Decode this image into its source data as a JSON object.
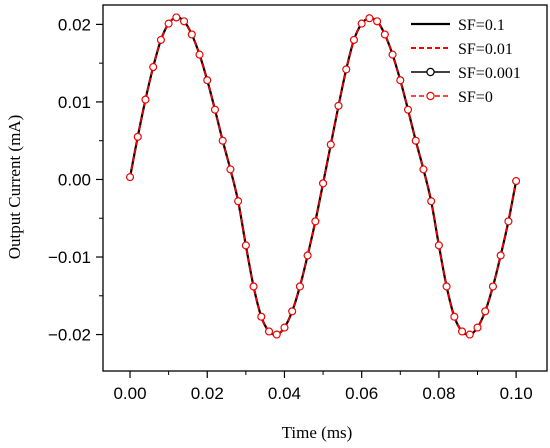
{
  "chart_data": {
    "type": "line",
    "title": "",
    "xlabel": "Time (ms)",
    "ylabel": "Output Current (mA)",
    "xlim": [
      -0.007,
      0.108
    ],
    "ylim": [
      -0.0247,
      0.0225
    ],
    "xticks": [
      0.0,
      0.02,
      0.04,
      0.06,
      0.08,
      0.1
    ],
    "xtick_labels": [
      "0.00",
      "0.02",
      "0.04",
      "0.06",
      "0.08",
      "0.10"
    ],
    "yticks": [
      -0.02,
      -0.01,
      0.0,
      0.01,
      0.02
    ],
    "ytick_labels": [
      "−0.02",
      "−0.01",
      "0.00",
      "0.01",
      "0.02"
    ],
    "grid": false,
    "legend_position": "top-right",
    "x": [
      0,
      0.002,
      0.004,
      0.006,
      0.008,
      0.01,
      0.012,
      0.014,
      0.016,
      0.018,
      0.02,
      0.022,
      0.024,
      0.026,
      0.028,
      0.03,
      0.032,
      0.034,
      0.036,
      0.038,
      0.04,
      0.042,
      0.044,
      0.046,
      0.048,
      0.05,
      0.052,
      0.054,
      0.056,
      0.058,
      0.06,
      0.062,
      0.064,
      0.066,
      0.068,
      0.07,
      0.072,
      0.074,
      0.076,
      0.078,
      0.08,
      0.082,
      0.084,
      0.086,
      0.088,
      0.09,
      0.092,
      0.094,
      0.096,
      0.098,
      0.1
    ],
    "series": [
      {
        "name": "SF=0.1",
        "color": "#000000",
        "line_style": "solid",
        "marker": "none",
        "values": [
          0.0003,
          0.0055,
          0.0103,
          0.0145,
          0.018,
          0.0201,
          0.0209,
          0.0204,
          0.0187,
          0.0161,
          0.0128,
          0.009,
          0.005,
          0.0013,
          -0.0028,
          -0.0085,
          -0.0138,
          -0.0177,
          -0.0196,
          -0.02,
          -0.0191,
          -0.017,
          -0.0138,
          -0.0098,
          -0.0054,
          -0.0005,
          0.0045,
          0.0095,
          0.0142,
          0.018,
          0.0201,
          0.0208,
          0.0204,
          0.0187,
          0.0161,
          0.0128,
          0.009,
          0.005,
          0.0013,
          -0.0028,
          -0.0085,
          -0.0138,
          -0.0177,
          -0.0196,
          -0.02,
          -0.0191,
          -0.017,
          -0.0138,
          -0.0098,
          -0.0054,
          -0.0002
        ]
      },
      {
        "name": "SF=0.01",
        "color": "#ff0000",
        "line_style": "dashed",
        "marker": "none",
        "values": [
          0.0003,
          0.0055,
          0.0103,
          0.0145,
          0.018,
          0.0201,
          0.0209,
          0.0204,
          0.0187,
          0.0161,
          0.0128,
          0.009,
          0.005,
          0.0013,
          -0.0028,
          -0.0085,
          -0.0138,
          -0.0177,
          -0.0196,
          -0.02,
          -0.0191,
          -0.017,
          -0.0138,
          -0.0098,
          -0.0054,
          -0.0005,
          0.0045,
          0.0095,
          0.0142,
          0.018,
          0.0201,
          0.0208,
          0.0204,
          0.0187,
          0.0161,
          0.0128,
          0.009,
          0.005,
          0.0013,
          -0.0028,
          -0.0085,
          -0.0138,
          -0.0177,
          -0.0196,
          -0.02,
          -0.0191,
          -0.017,
          -0.0138,
          -0.0098,
          -0.0054,
          -0.0002
        ]
      },
      {
        "name": "SF=0.001",
        "color": "#000000",
        "line_style": "solid",
        "marker": "circle",
        "values": [
          0.0003,
          0.0055,
          0.0103,
          0.0145,
          0.018,
          0.0201,
          0.0209,
          0.0204,
          0.0187,
          0.0161,
          0.0128,
          0.009,
          0.005,
          0.0013,
          -0.0028,
          -0.0085,
          -0.0138,
          -0.0177,
          -0.0196,
          -0.02,
          -0.0191,
          -0.017,
          -0.0138,
          -0.0098,
          -0.0054,
          -0.0005,
          0.0045,
          0.0095,
          0.0142,
          0.018,
          0.0201,
          0.0208,
          0.0204,
          0.0187,
          0.0161,
          0.0128,
          0.009,
          0.005,
          0.0013,
          -0.0028,
          -0.0085,
          -0.0138,
          -0.0177,
          -0.0196,
          -0.02,
          -0.0191,
          -0.017,
          -0.0138,
          -0.0098,
          -0.0054,
          -0.0002
        ]
      },
      {
        "name": "SF=0",
        "color": "#ff0000",
        "line_style": "dashed",
        "marker": "circle",
        "values": [
          0.0003,
          0.0055,
          0.0103,
          0.0145,
          0.018,
          0.0201,
          0.0209,
          0.0204,
          0.0187,
          0.0161,
          0.0128,
          0.009,
          0.005,
          0.0013,
          -0.0028,
          -0.0085,
          -0.0138,
          -0.0177,
          -0.0196,
          -0.02,
          -0.0191,
          -0.017,
          -0.0138,
          -0.0098,
          -0.0054,
          -0.0005,
          0.0045,
          0.0095,
          0.0142,
          0.018,
          0.0201,
          0.0208,
          0.0204,
          0.0187,
          0.0161,
          0.0128,
          0.009,
          0.005,
          0.0013,
          -0.0028,
          -0.0085,
          -0.0138,
          -0.0177,
          -0.0196,
          -0.02,
          -0.0191,
          -0.017,
          -0.0138,
          -0.0098,
          -0.0054,
          -0.0002
        ]
      }
    ]
  }
}
